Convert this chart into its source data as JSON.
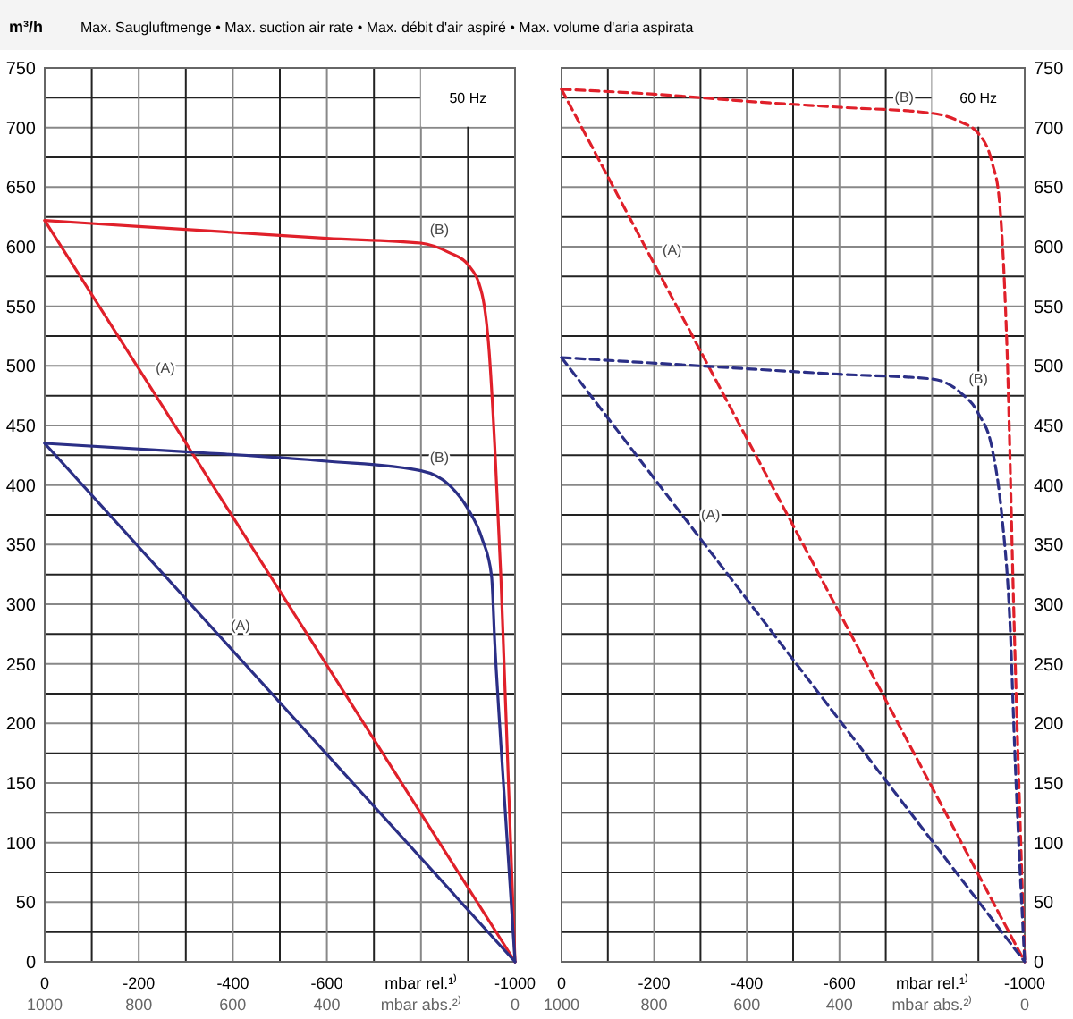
{
  "chart_data": [
    {
      "type": "line",
      "title": "Max. Saugluftmenge • Max. suction air rate • Max. débit d'air aspiré • Max. volume d'aria aspirata",
      "ylabel": "m³/h",
      "line_style": "solid",
      "grid": true,
      "xlim": [
        0,
        -1000
      ],
      "ylim": [
        0,
        750
      ],
      "xticks": [
        0,
        {
          "value": -100,
          "label": null
        },
        -200,
        {
          "value": -300,
          "label": null
        },
        -400,
        {
          "value": -500,
          "label": null
        },
        -600,
        {
          "value": -700,
          "label": null
        },
        {
          "value": -800,
          "label": "mbar rel.¹⁾"
        },
        {
          "value": -900,
          "label": null
        },
        -1000
      ],
      "x2lim": [
        1000,
        0
      ],
      "x2ticks": [
        1000,
        800,
        600,
        400,
        {
          "value": 200,
          "label": "mbar abs.²⁾"
        },
        0
      ],
      "yticks": [
        0,
        {
          "value": 25,
          "label": null
        },
        50,
        {
          "value": 75,
          "label": null
        },
        100,
        {
          "value": 125,
          "label": null
        },
        150,
        {
          "value": 175,
          "label": null
        },
        200,
        {
          "value": 225,
          "label": null
        },
        250,
        {
          "value": 275,
          "label": null
        },
        300,
        {
          "value": 325,
          "label": null
        },
        350,
        {
          "value": 375,
          "label": null
        },
        400,
        {
          "value": 425,
          "label": null
        },
        450,
        {
          "value": 475,
          "label": null
        },
        500,
        {
          "value": 525,
          "label": null
        },
        550,
        {
          "value": 575,
          "label": null
        },
        600,
        {
          "value": 625,
          "label": null
        },
        650,
        {
          "value": 675,
          "label": null
        },
        700,
        {
          "value": 725,
          "label": null
        },
        750
      ],
      "series": [
        {
          "color": "#e0202a",
          "x": [
            0,
            -200,
            -400,
            -600,
            -800,
            -860,
            -900,
            -930,
            -945,
            -957,
            -970,
            -1000
          ],
          "values": [
            622,
            617,
            612,
            607,
            603,
            595,
            585,
            560,
            512,
            432,
            322,
            0
          ]
        },
        {
          "color": "#e0202a",
          "x": [
            0,
            -1000
          ],
          "values": [
            622,
            0
          ]
        },
        {
          "color": "#2b2f86",
          "x": [
            0,
            -300,
            -600,
            -800,
            -860,
            -900,
            -930,
            -950,
            -957,
            -970,
            -1000
          ],
          "values": [
            435,
            428,
            420,
            412,
            400,
            380,
            355,
            324,
            267,
            182,
            0
          ]
        },
        {
          "color": "#2b2f86",
          "x": [
            0,
            -1000
          ],
          "values": [
            435,
            0
          ]
        }
      ],
      "annotations": [
        "50 Hz",
        {
          "text": "(B)",
          "x": -800,
          "y": 603
        },
        {
          "text": "(A)",
          "x": -217,
          "y": 487
        },
        {
          "text": "(B)",
          "x": -800,
          "y": 412
        },
        {
          "text": "(A)",
          "x": -377,
          "y": 271
        }
      ]
    },
    {
      "type": "line",
      "line_style": "dashed",
      "grid": true,
      "xlim": [
        0,
        -1000
      ],
      "ylim": [
        0,
        750
      ],
      "xticks": [
        0,
        {
          "value": -100,
          "label": null
        },
        -200,
        {
          "value": -300,
          "label": null
        },
        -400,
        {
          "value": -500,
          "label": null
        },
        -600,
        {
          "value": -700,
          "label": null
        },
        {
          "value": -800,
          "label": "mbar rel.¹⁾"
        },
        {
          "value": -900,
          "label": null
        },
        -1000
      ],
      "x2lim": [
        1000,
        0
      ],
      "x2ticks": [
        1000,
        800,
        600,
        400,
        {
          "value": 200,
          "label": "mbar abs.²⁾"
        },
        0
      ],
      "yticks": [
        0,
        {
          "value": 25,
          "label": null
        },
        50,
        {
          "value": 75,
          "label": null
        },
        100,
        {
          "value": 125,
          "label": null
        },
        150,
        {
          "value": 175,
          "label": null
        },
        200,
        {
          "value": 225,
          "label": null
        },
        250,
        {
          "value": 275,
          "label": null
        },
        300,
        {
          "value": 325,
          "label": null
        },
        350,
        {
          "value": 375,
          "label": null
        },
        400,
        {
          "value": 425,
          "label": null
        },
        450,
        {
          "value": 475,
          "label": null
        },
        500,
        {
          "value": 525,
          "label": null
        },
        550,
        {
          "value": 575,
          "label": null
        },
        600,
        {
          "value": 625,
          "label": null
        },
        650,
        {
          "value": 675,
          "label": null
        },
        700,
        {
          "value": 725,
          "label": null
        },
        750
      ],
      "series": [
        {
          "color": "#e0202a",
          "x": [
            0,
            -200,
            -400,
            -600,
            -800,
            -860,
            -900,
            -930,
            -945,
            -955,
            -962,
            -976,
            -1000
          ],
          "values": [
            732,
            728,
            722,
            717,
            712,
            705,
            695,
            670,
            640,
            580,
            512,
            300,
            0
          ]
        },
        {
          "color": "#e0202a",
          "x": [
            0,
            -1000
          ],
          "values": [
            732,
            0
          ]
        },
        {
          "color": "#2b2f86",
          "x": [
            0,
            -300,
            -600,
            -800,
            -860,
            -900,
            -930,
            -950,
            -969,
            -978,
            -1000
          ],
          "values": [
            507,
            500,
            493,
            489,
            478,
            460,
            430,
            377,
            277,
            182,
            0
          ]
        },
        {
          "color": "#2b2f86",
          "x": [
            0,
            -1000
          ],
          "values": [
            507,
            0
          ]
        }
      ],
      "annotations": [
        "60 Hz",
        {
          "text": "(B)",
          "x": -700,
          "y": 714
        },
        {
          "text": "(A)",
          "x": -199,
          "y": 586
        },
        {
          "text": "(B)",
          "x": -860,
          "y": 478
        },
        {
          "text": "(A)",
          "x": -282,
          "y": 364
        }
      ]
    }
  ]
}
